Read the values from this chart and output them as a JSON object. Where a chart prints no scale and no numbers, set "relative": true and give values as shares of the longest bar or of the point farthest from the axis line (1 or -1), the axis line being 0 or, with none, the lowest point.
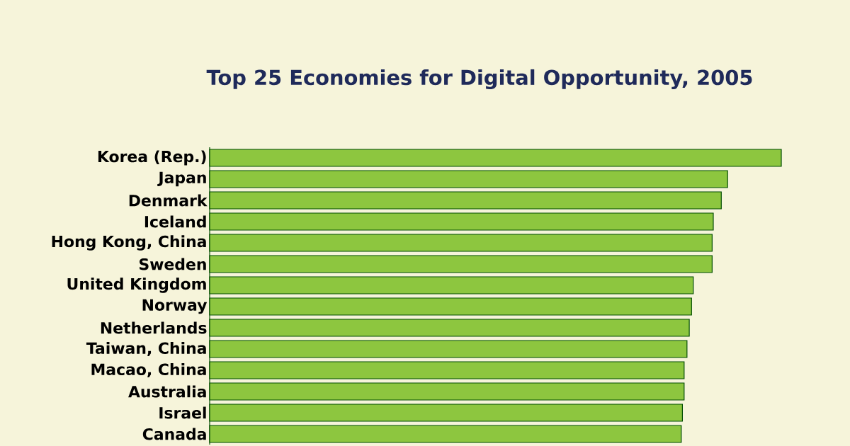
{
  "chart_data": {
    "type": "bar",
    "orientation": "horizontal",
    "relative": true,
    "title": "Top 25 Economies for Digital Opportunity, 2005",
    "categories": [
      "Korea (Rep.)",
      "Japan",
      "Denmark",
      "Iceland",
      "Hong Kong, China",
      "Sweden",
      "United Kingdom",
      "Norway",
      "Netherlands",
      "Taiwan, China",
      "Macao, China",
      "Australia",
      "Israel",
      "Canada"
    ],
    "values": [
      1,
      0.906,
      0.895,
      0.881,
      0.879,
      0.879,
      0.846,
      0.843,
      0.839,
      0.835,
      0.83,
      0.83,
      0.827,
      0.825
    ],
    "color": "#8dc63f"
  }
}
